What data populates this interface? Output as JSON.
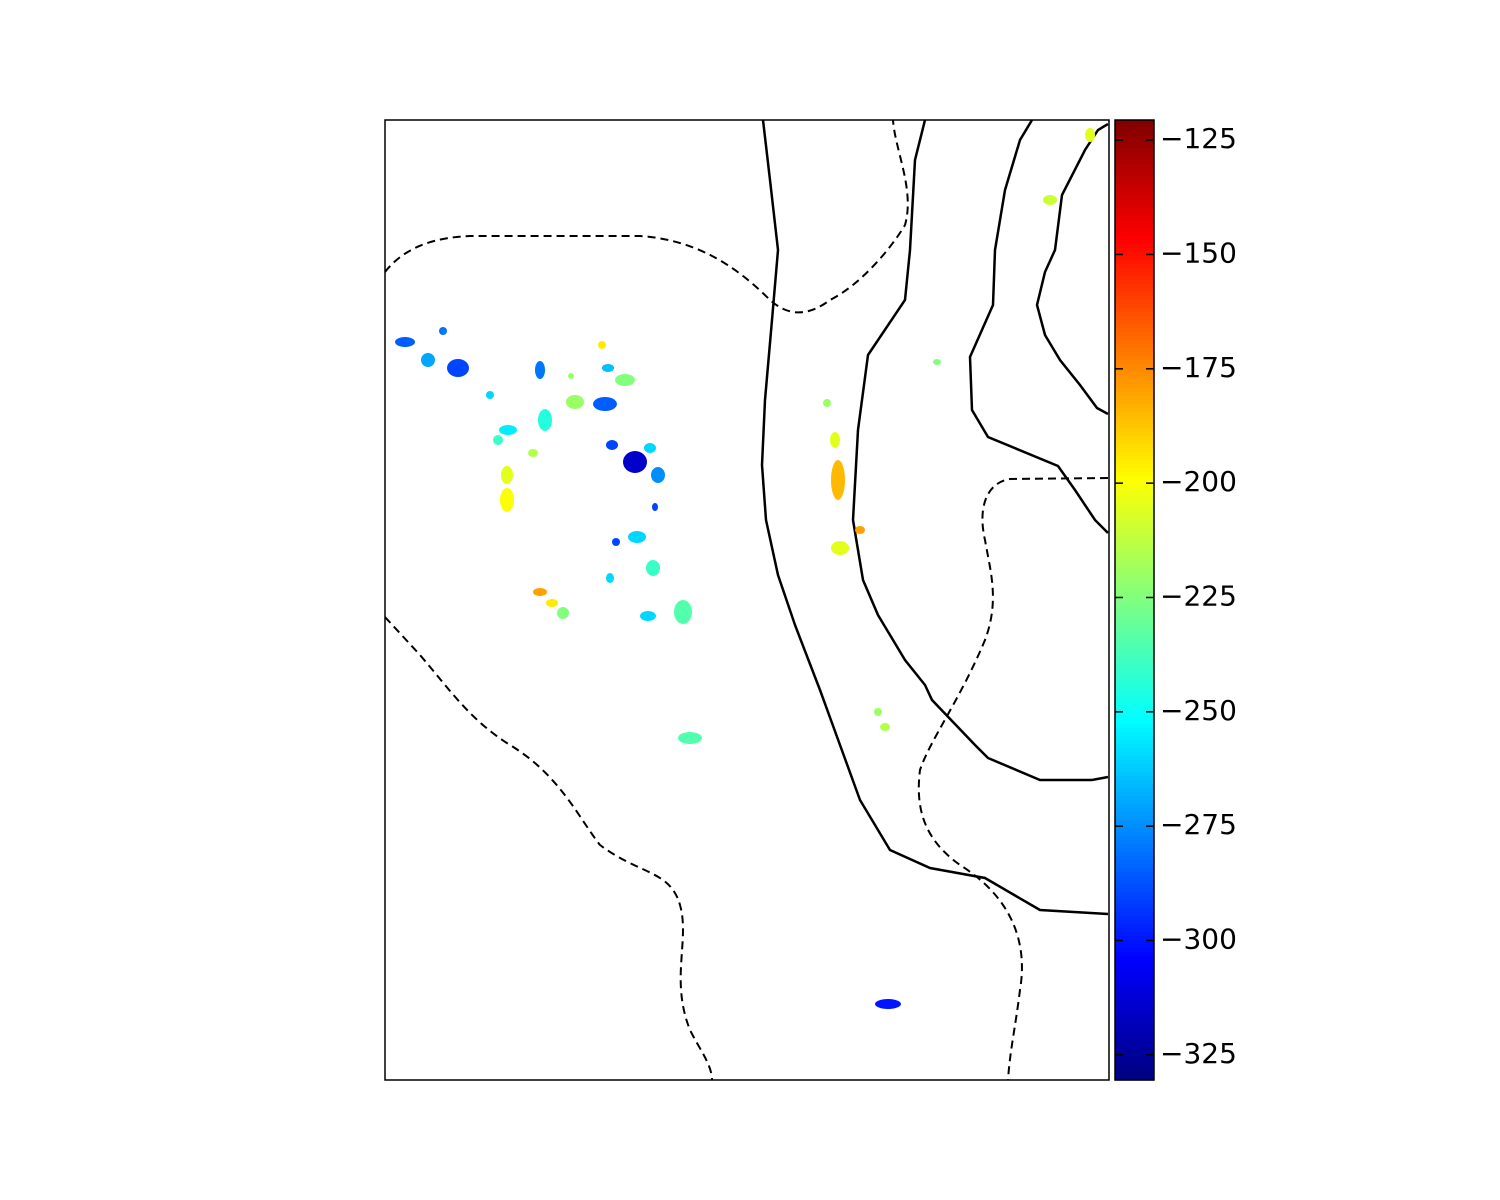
{
  "chart_data": {
    "type": "colormap-blobs",
    "colormap": "jet",
    "clim": [
      -330.5,
      -120.6
    ],
    "cticks": [
      {
        "value": -125,
        "label": "−125"
      },
      {
        "value": -150,
        "label": "−150"
      },
      {
        "value": -175,
        "label": "−175"
      },
      {
        "value": -200,
        "label": "−200"
      },
      {
        "value": -225,
        "label": "−225"
      },
      {
        "value": -250,
        "label": "−250"
      },
      {
        "value": -275,
        "label": "−275"
      },
      {
        "value": -300,
        "label": "−300"
      },
      {
        "value": -325,
        "label": "−325"
      }
    ],
    "values": [
      -285,
      -280,
      -270,
      -290,
      -260,
      -280,
      -220,
      -195,
      -265,
      -225,
      -220,
      -285,
      -255,
      -245,
      -240,
      -215,
      -205,
      -200,
      -290,
      -315,
      -260,
      -275,
      -290,
      -260,
      -290,
      -240,
      -260,
      -180,
      -195,
      -225,
      -260,
      -235,
      -235,
      -220,
      -205,
      -185,
      -180,
      -205,
      -220,
      -215,
      -225,
      -300,
      -210,
      -205
    ]
  }
}
